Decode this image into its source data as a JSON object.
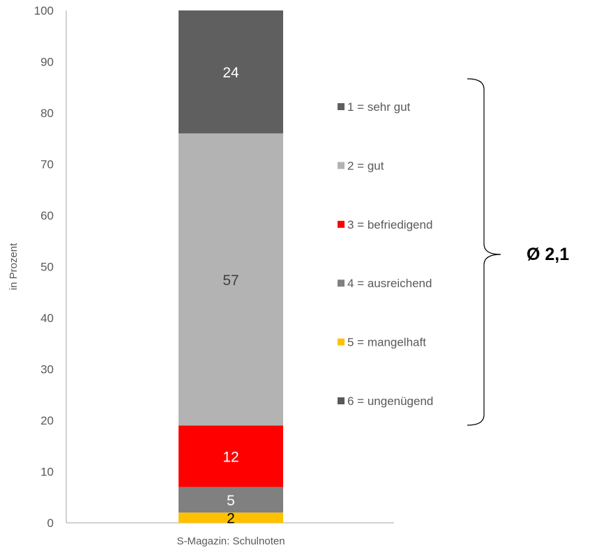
{
  "chart_data": {
    "type": "bar",
    "stacked": true,
    "categories": [
      "S-Magazin: Schulnoten"
    ],
    "ylabel": "in Prozent",
    "ylim": [
      0,
      100
    ],
    "yticks": [
      0,
      10,
      20,
      30,
      40,
      50,
      60,
      70,
      80,
      90,
      100
    ],
    "grid": false,
    "legend_position": "right",
    "series": [
      {
        "name": "6 = ungenügend",
        "values": [
          0
        ],
        "color": "#595959",
        "label": "",
        "label_color": "#ffffff"
      },
      {
        "name": "5 = mangelhaft",
        "values": [
          2
        ],
        "color": "#ffc000",
        "label": "2",
        "label_color": "#000000"
      },
      {
        "name": "4 = ausreichend",
        "values": [
          5
        ],
        "color": "#808080",
        "label": "5",
        "label_color": "#ffffff"
      },
      {
        "name": "3 = befriedigend",
        "values": [
          12
        ],
        "color": "#ff0000",
        "label": "12",
        "label_color": "#ffffff"
      },
      {
        "name": "2 = gut",
        "values": [
          57
        ],
        "color": "#b3b3b3",
        "label": "57",
        "label_color": "#404040"
      },
      {
        "name": "1 = sehr gut",
        "values": [
          24
        ],
        "color": "#5f5f5f",
        "label": "24",
        "label_color": "#ffffff"
      }
    ],
    "legend_order": [
      "1 = sehr gut",
      "2 = gut",
      "3 = befriedigend",
      "4 = ausreichend",
      "5 = mangelhaft",
      "6 = ungenügend"
    ],
    "annotation": "Ø 2,1"
  }
}
